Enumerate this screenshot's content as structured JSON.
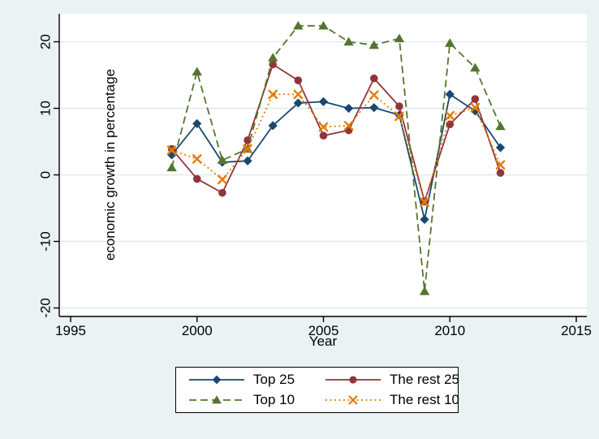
{
  "figure": {
    "background": "#eaf2f3",
    "plot_background": "#ffffff",
    "gridline_color": "#dfeaee",
    "axis_color": "#000000"
  },
  "chart_data": {
    "type": "line",
    "title": "",
    "xlabel": "Year",
    "ylabel": "economic growth in percentage",
    "xlim": [
      1995,
      2015
    ],
    "ylim": [
      -20,
      20
    ],
    "x_ticks": [
      1995,
      2000,
      2005,
      2010,
      2015
    ],
    "y_ticks": [
      20,
      10,
      0,
      -10,
      -20
    ],
    "grid": true,
    "legend_position": "bottom",
    "x": [
      1999,
      2000,
      2001,
      2002,
      2003,
      2004,
      2005,
      2006,
      2007,
      2008,
      2009,
      2010,
      2011,
      2012
    ],
    "series": [
      {
        "name": "Top 25",
        "color": "#1a476f",
        "line": "solid",
        "marker": "diamond",
        "values": [
          3.0,
          7.7,
          1.9,
          2.1,
          7.4,
          10.8,
          11.0,
          10.0,
          10.1,
          9.0,
          -6.7,
          12.1,
          9.6,
          4.1
        ]
      },
      {
        "name": "The rest 25",
        "color": "#90353b",
        "line": "solid",
        "marker": "circle",
        "values": [
          3.9,
          -0.6,
          -2.7,
          5.2,
          16.6,
          14.2,
          5.9,
          6.7,
          14.5,
          10.3,
          -4.0,
          7.6,
          11.4,
          0.3
        ]
      },
      {
        "name": "Top 10",
        "color": "#55752f",
        "line": "dash",
        "marker": "triangle",
        "values": [
          1.1,
          15.5,
          2.2,
          3.9,
          17.6,
          22.4,
          22.4,
          20.0,
          19.5,
          20.5,
          -17.5,
          19.8,
          16.1,
          7.3
        ]
      },
      {
        "name": "The rest 10",
        "color": "#e37e00",
        "line": "dot",
        "marker": "x",
        "values": [
          3.7,
          2.4,
          -0.7,
          3.9,
          12.1,
          12.1,
          7.2,
          7.4,
          12.0,
          8.8,
          -4.1,
          8.9,
          10.1,
          1.5
        ]
      }
    ]
  }
}
